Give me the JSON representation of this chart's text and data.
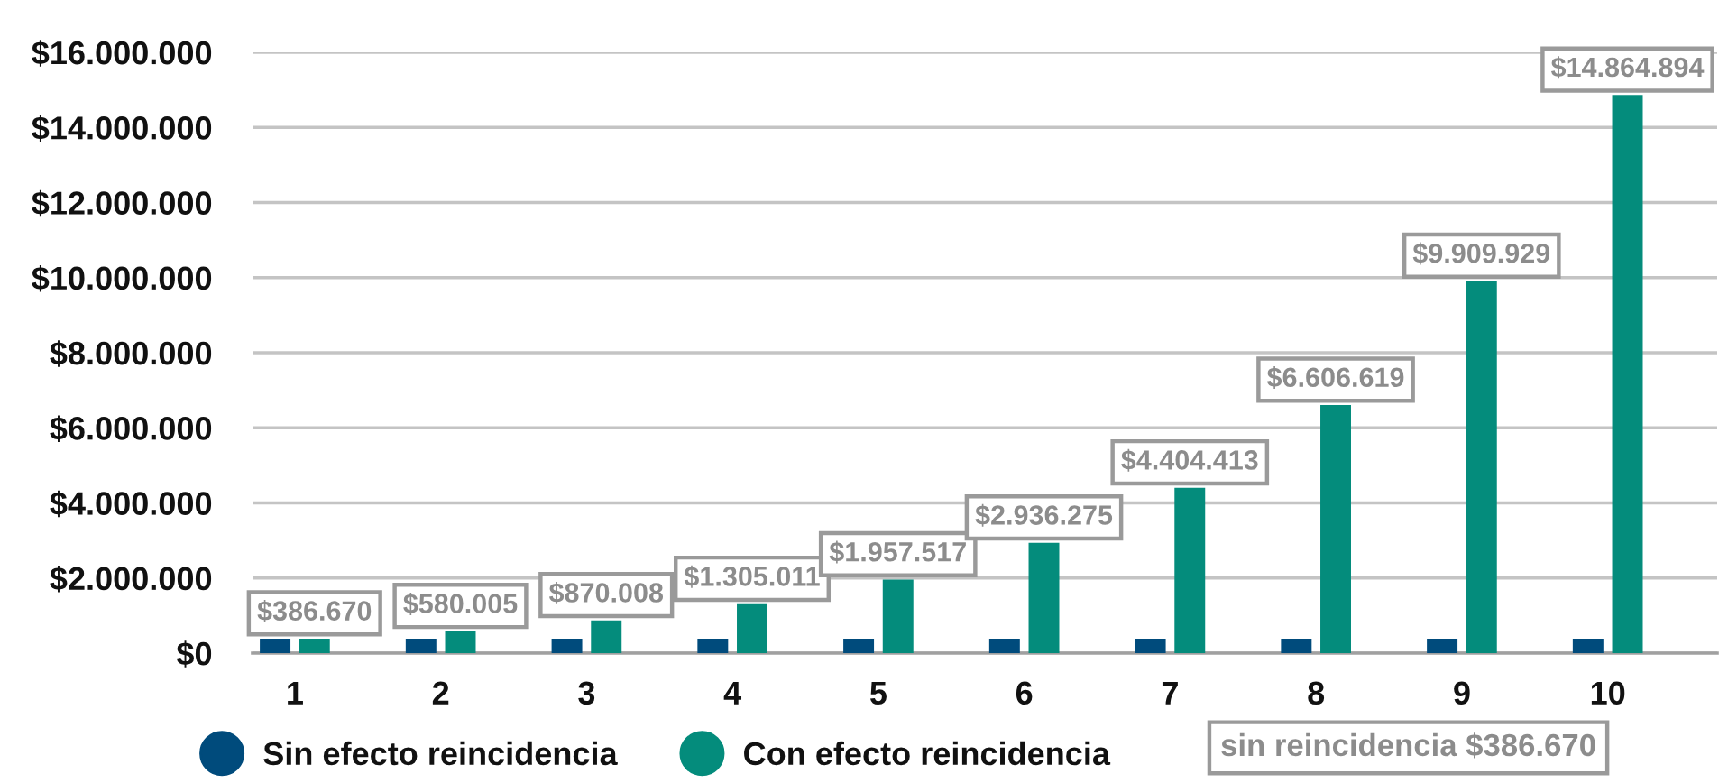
{
  "chart_data": {
    "type": "bar",
    "categories": [
      "1",
      "2",
      "3",
      "4",
      "5",
      "6",
      "7",
      "8",
      "9",
      "10"
    ],
    "series": [
      {
        "name": "Sin efecto reincidencia",
        "color": "#004b7c",
        "values": [
          386670,
          386670,
          386670,
          386670,
          386670,
          386670,
          386670,
          386670,
          386670,
          386670
        ]
      },
      {
        "name": "Con efecto reincidencia",
        "color": "#048c7c",
        "values": [
          386670,
          580005,
          870008,
          1305011,
          1957517,
          2936275,
          4404413,
          6606619,
          9909929,
          14864894
        ],
        "value_labels": [
          "$386.670",
          "$580.005",
          "$870.008",
          "$1.305.011",
          "$1.957.517",
          "$2.936.275",
          "$4.404.413",
          "$6.606.619",
          "$9.909.929",
          "$14.864.894"
        ]
      }
    ],
    "ylim": [
      0,
      16000000
    ],
    "yticks": [
      {
        "value": 0,
        "label": "$0"
      },
      {
        "value": 2000000,
        "label": "$2.000.000"
      },
      {
        "value": 4000000,
        "label": "$4.000.000"
      },
      {
        "value": 6000000,
        "label": "$6.000.000"
      },
      {
        "value": 8000000,
        "label": "$8.000.000"
      },
      {
        "value": 10000000,
        "label": "$10.000.000"
      },
      {
        "value": 12000000,
        "label": "$12.000.000"
      },
      {
        "value": 14000000,
        "label": "$14.000.000"
      },
      {
        "value": 16000000,
        "label": "$16.000.000"
      }
    ],
    "grid": "y",
    "legend": "bottom",
    "annotations": [
      "sin reincidencia $386.670"
    ]
  }
}
